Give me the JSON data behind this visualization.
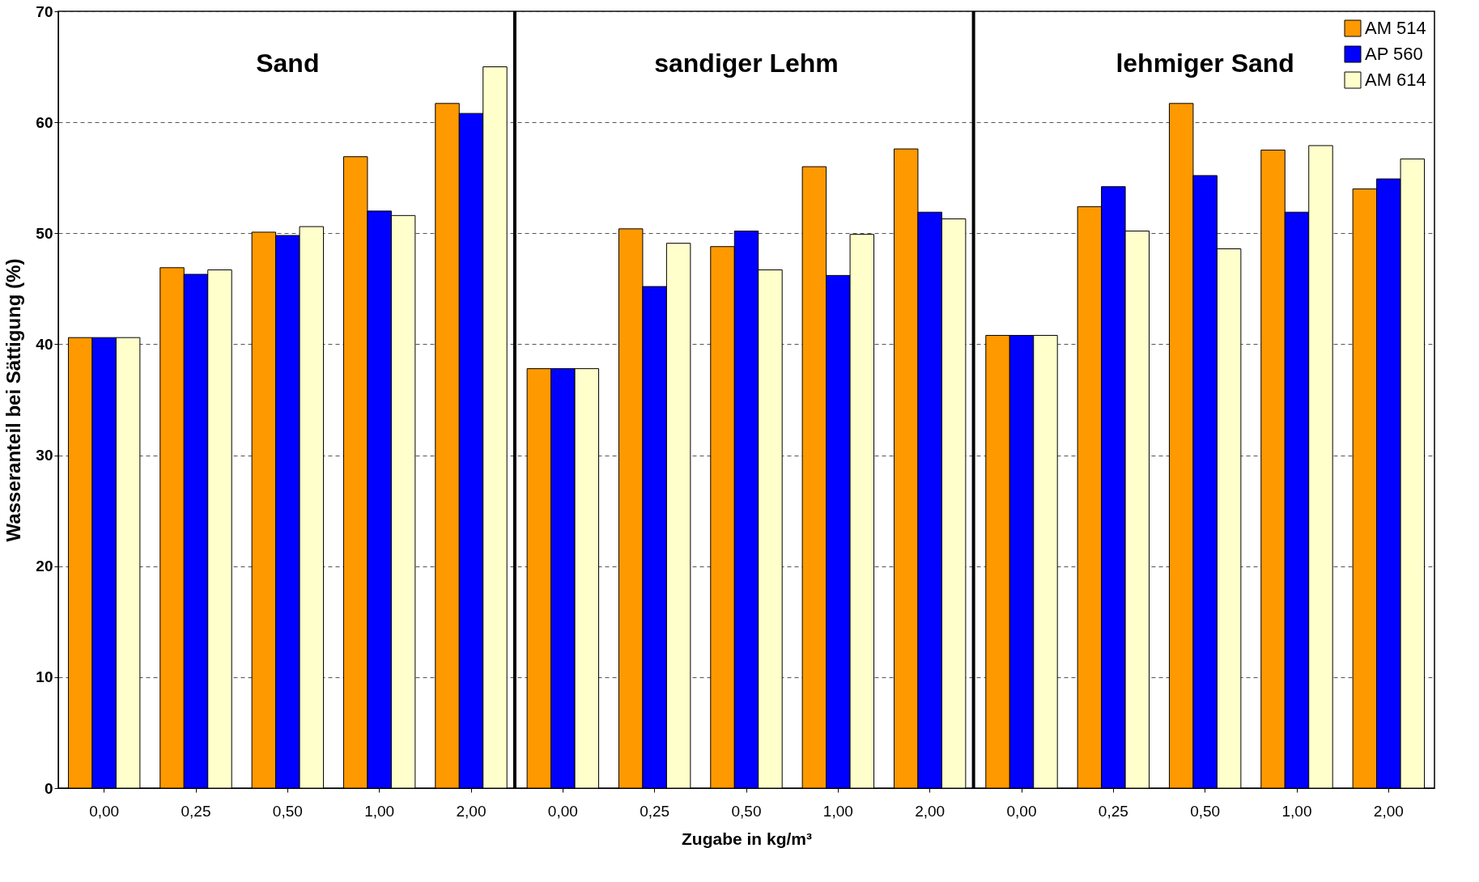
{
  "chart_data": {
    "type": "bar",
    "xlabel": "Zugabe in kg/m³",
    "ylabel": "Wasseranteil bei Sättigung (%)",
    "categories": [
      "0,00",
      "0,25",
      "0,50",
      "1,00",
      "2,00",
      "0,00",
      "0,25",
      "0,50",
      "1,00",
      "2,00",
      "0,00",
      "0,25",
      "0,50",
      "1,00",
      "2,00"
    ],
    "series": [
      {
        "name": "AM 514",
        "color": "#ff9900",
        "values": [
          40.6,
          46.9,
          50.1,
          56.9,
          61.7,
          37.8,
          50.4,
          48.8,
          56.0,
          57.6,
          40.8,
          52.4,
          61.7,
          57.5,
          54.0
        ]
      },
      {
        "name": "AP 560",
        "color": "#0000ff",
        "values": [
          40.6,
          46.3,
          49.8,
          52.0,
          60.8,
          37.8,
          45.2,
          50.2,
          46.2,
          51.9,
          40.8,
          54.2,
          55.2,
          51.9,
          54.9
        ]
      },
      {
        "name": "AM 614",
        "color": "#ffffcc",
        "values": [
          40.6,
          46.7,
          50.6,
          51.6,
          65.0,
          37.8,
          49.1,
          46.7,
          49.9,
          51.3,
          40.8,
          50.2,
          48.6,
          57.9,
          56.7
        ]
      }
    ],
    "annotations": [
      "Sand",
      "sandiger Lehm",
      "lehmiger Sand"
    ],
    "ylim": [
      0,
      70
    ],
    "yticks": [
      0,
      10,
      20,
      30,
      40,
      50,
      60,
      70
    ],
    "grid": "y",
    "legend": "top right"
  }
}
